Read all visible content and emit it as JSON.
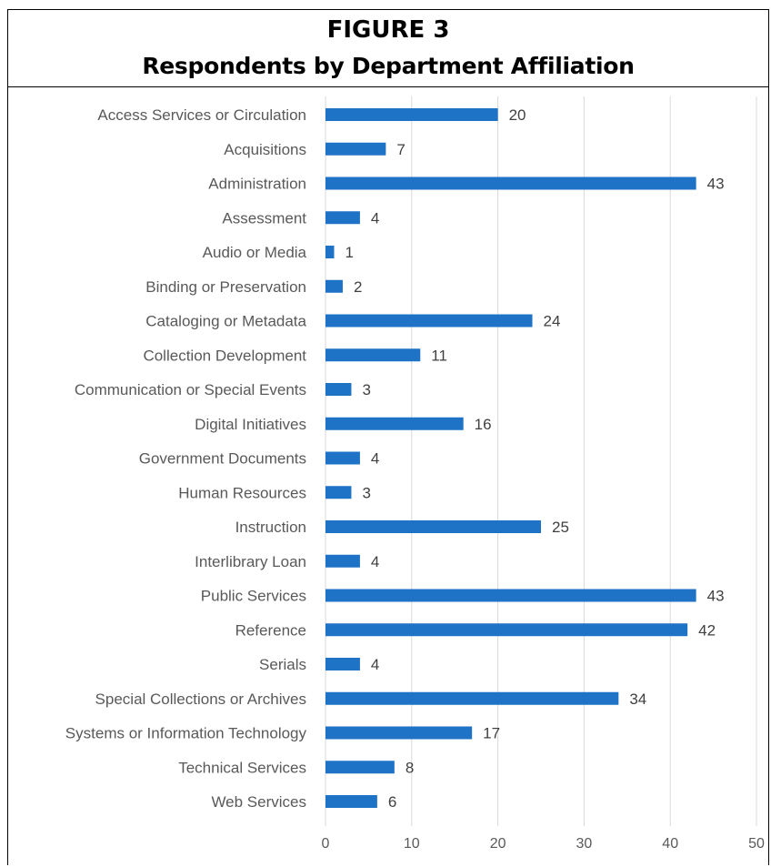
{
  "figure": {
    "label": "FIGURE 3",
    "title": "Respondents by Department Affiliation"
  },
  "colors": {
    "bar": "#1f73c6",
    "grid": "#d9d9d9",
    "label": "#595959"
  },
  "chart_data": {
    "type": "bar",
    "orientation": "horizontal",
    "title": "Respondents by Department Affiliation",
    "xlabel": "",
    "ylabel": "",
    "xlim": [
      0,
      50
    ],
    "x_ticks": [
      0,
      10,
      20,
      30,
      40,
      50
    ],
    "grid": true,
    "data_labels": true,
    "categories": [
      "Access Services or Circulation",
      "Acquisitions",
      "Administration",
      "Assessment",
      "Audio or Media",
      "Binding or Preservation",
      "Cataloging or Metadata",
      "Collection Development",
      "Communication or Special Events",
      "Digital Initiatives",
      "Government Documents",
      "Human Resources",
      "Instruction",
      "Interlibrary Loan",
      "Public Services",
      "Reference",
      "Serials",
      "Special Collections or Archives",
      "Systems or Information Technology",
      "Technical Services",
      "Web Services"
    ],
    "values": [
      20,
      7,
      43,
      4,
      1,
      2,
      24,
      11,
      3,
      16,
      4,
      3,
      25,
      4,
      43,
      42,
      4,
      34,
      17,
      8,
      6
    ]
  }
}
